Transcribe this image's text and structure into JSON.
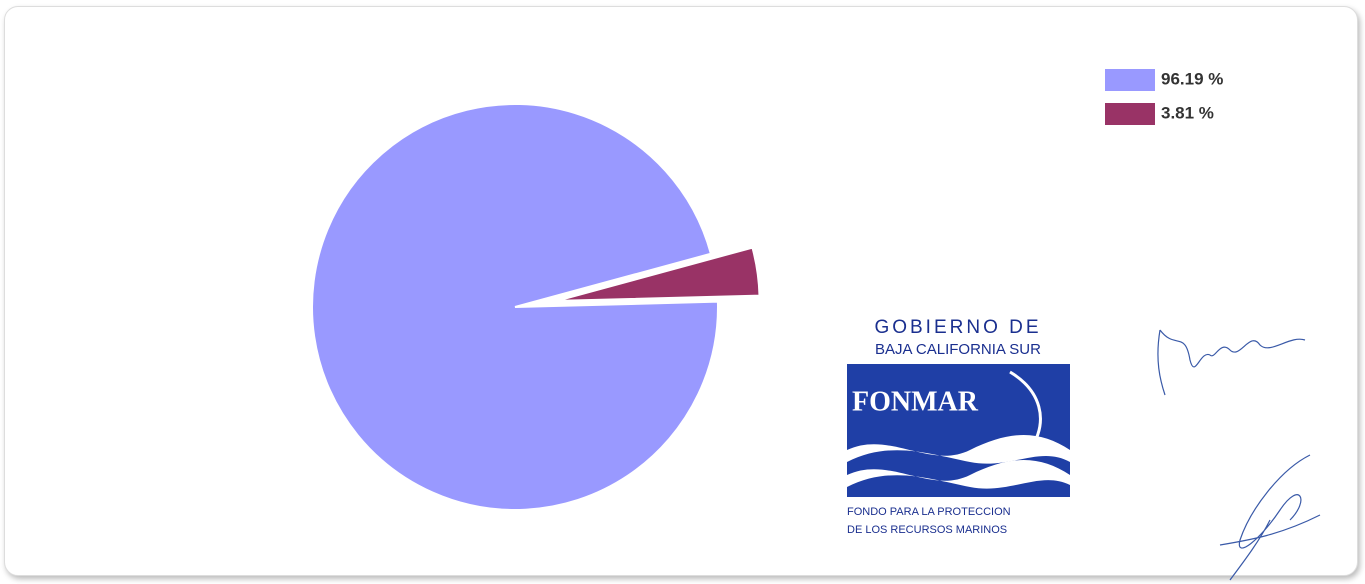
{
  "chart_data": {
    "type": "pie",
    "values": [
      96.19,
      3.81
    ],
    "value_labels": [
      "96.19 %",
      "3.81 %"
    ],
    "colors": [
      "#9999ff",
      "#993366"
    ],
    "legend": "top-right"
  },
  "logo": {
    "line1": "GOBIERNO DE",
    "line2": "BAJA CALIFORNIA SUR",
    "name": "FONMAR",
    "footer1": "FONDO PARA LA PROTECCION",
    "footer2": "DE LOS RECURSOS MARINOS"
  }
}
